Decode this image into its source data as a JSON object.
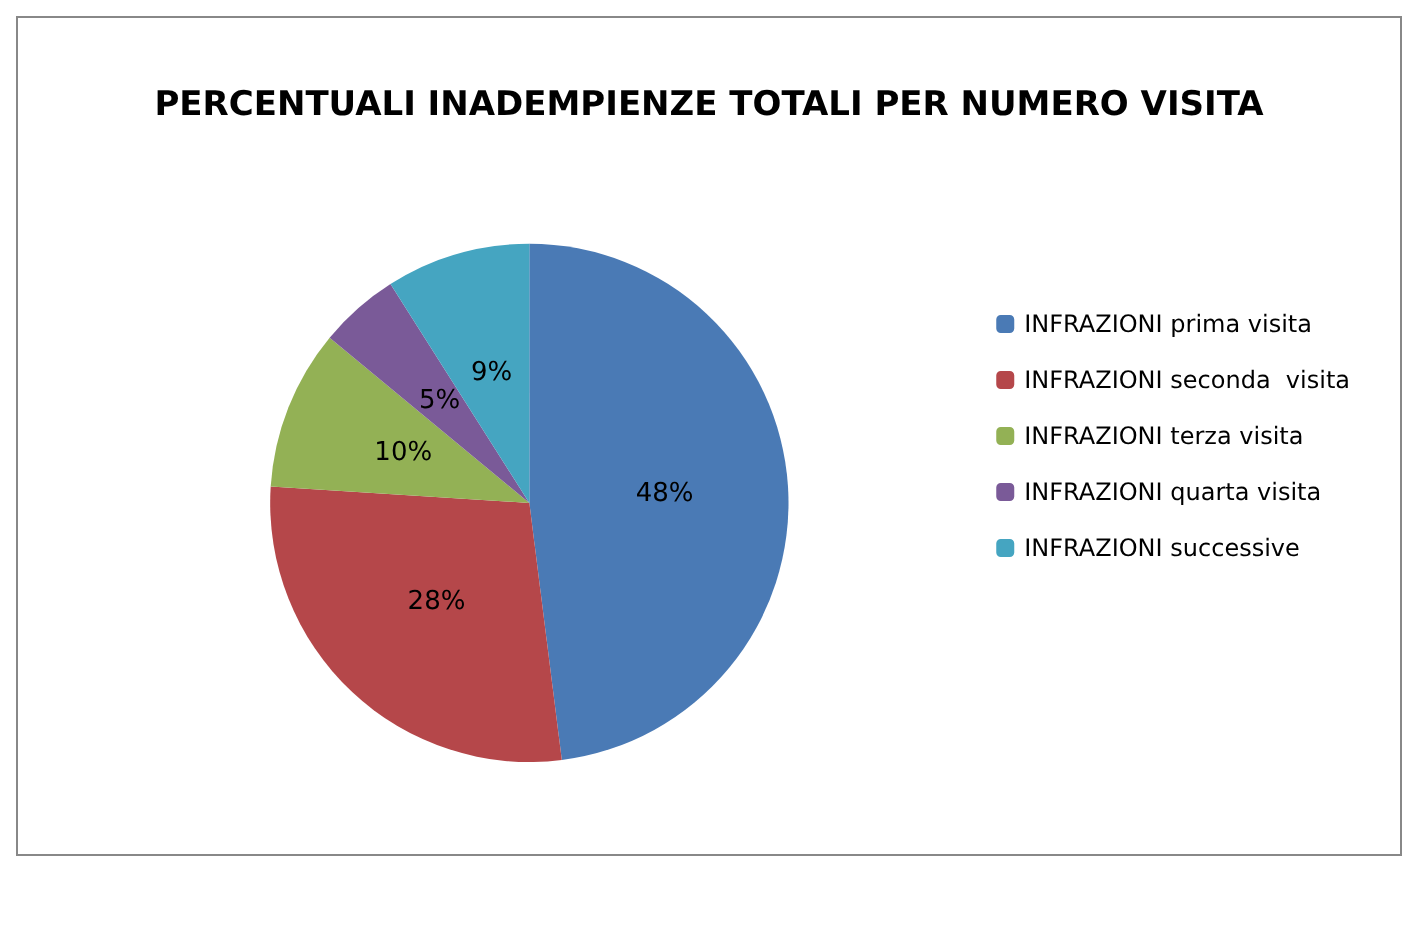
{
  "chart_data": {
    "type": "pie",
    "title": "PERCENTUALI INADEMPIENZE TOTALI PER NUMERO VISITA",
    "categories": [
      "INFRAZIONI prima visita",
      "INFRAZIONI seconda  visita",
      "INFRAZIONI terza visita",
      "INFRAZIONI quarta visita",
      "INFRAZIONI successive"
    ],
    "values": [
      48,
      28,
      10,
      5,
      9
    ],
    "colors": [
      "#4a7ab5",
      "#b5474a",
      "#93b155",
      "#7a5a98",
      "#45a5c1"
    ],
    "value_labels": [
      "48%",
      "28%",
      "10%",
      "5%",
      "9%"
    ],
    "legend": "right"
  }
}
